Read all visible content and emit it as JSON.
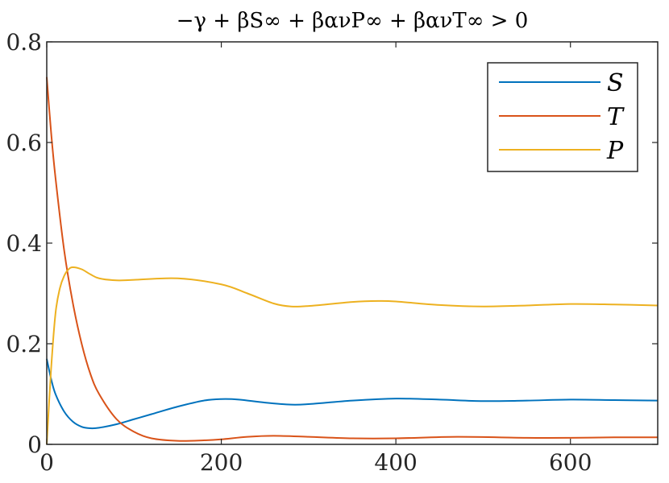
{
  "chart_data": {
    "type": "line",
    "title": "−γ + βS∞ + βανP∞ + βανT∞ > 0",
    "xlim": [
      0,
      700
    ],
    "ylim": [
      0,
      0.8
    ],
    "x_ticks": [
      0,
      200,
      400,
      600
    ],
    "y_ticks": [
      0,
      0.2,
      0.4,
      0.6,
      0.8
    ],
    "x_tick_labels": [
      "0",
      "200",
      "400",
      "600"
    ],
    "y_tick_labels": [
      "0",
      "0.2",
      "0.4",
      "0.6",
      "0.8"
    ],
    "grid": false,
    "legend_position": "top-right",
    "series": [
      {
        "name": "S",
        "color": "#0072BD",
        "x": [
          0,
          5,
          10,
          20,
          30,
          40,
          50,
          60,
          80,
          100,
          120,
          150,
          180,
          200,
          220,
          250,
          280,
          300,
          350,
          400,
          450,
          500,
          550,
          600,
          650,
          700
        ],
        "y": [
          0.17,
          0.13,
          0.1,
          0.065,
          0.045,
          0.035,
          0.032,
          0.033,
          0.04,
          0.05,
          0.06,
          0.075,
          0.087,
          0.09,
          0.089,
          0.083,
          0.079,
          0.08,
          0.087,
          0.091,
          0.089,
          0.086,
          0.087,
          0.089,
          0.088,
          0.087
        ]
      },
      {
        "name": "T",
        "color": "#D95319",
        "x": [
          0,
          5,
          10,
          20,
          30,
          40,
          50,
          60,
          80,
          100,
          120,
          150,
          180,
          200,
          230,
          260,
          300,
          350,
          400,
          470,
          550,
          600,
          650,
          700
        ],
        "y": [
          0.73,
          0.62,
          0.53,
          0.385,
          0.28,
          0.2,
          0.14,
          0.1,
          0.05,
          0.025,
          0.012,
          0.007,
          0.008,
          0.01,
          0.015,
          0.017,
          0.015,
          0.012,
          0.012,
          0.015,
          0.013,
          0.013,
          0.014,
          0.014
        ]
      },
      {
        "name": "P",
        "color": "#EDB120",
        "x": [
          0,
          5,
          10,
          15,
          20,
          25,
          30,
          40,
          50,
          60,
          80,
          100,
          150,
          200,
          230,
          260,
          280,
          300,
          350,
          380,
          400,
          450,
          500,
          550,
          600,
          650,
          700
        ],
        "y": [
          0.0,
          0.15,
          0.26,
          0.31,
          0.335,
          0.348,
          0.352,
          0.348,
          0.338,
          0.33,
          0.326,
          0.327,
          0.33,
          0.318,
          0.3,
          0.28,
          0.274,
          0.275,
          0.283,
          0.285,
          0.284,
          0.277,
          0.274,
          0.276,
          0.279,
          0.278,
          0.276
        ]
      }
    ]
  }
}
